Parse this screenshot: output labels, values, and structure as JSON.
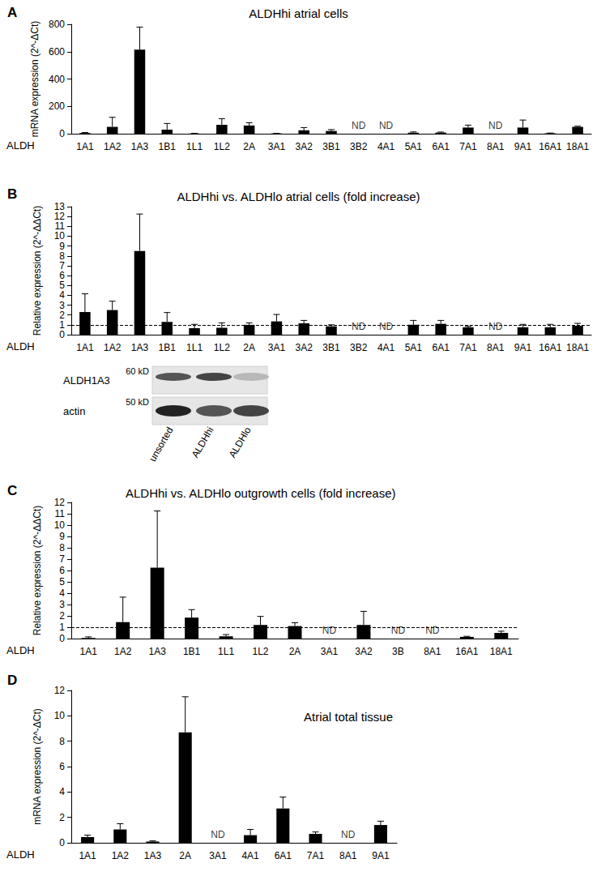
{
  "chart_data": [
    {
      "type": "bar",
      "panel": "A",
      "title": "ALDHhi atrial cells",
      "xlabel": "ALDH",
      "ylabel": "mRNA expression (2^-ΔCt)",
      "categories": [
        "1A1",
        "1A2",
        "1A3",
        "1B1",
        "1L1",
        "1L2",
        "2A",
        "3A1",
        "3A2",
        "3B1",
        "3B2",
        "4A1",
        "5A1",
        "6A1",
        "7A1",
        "8A1",
        "9A1",
        "16A1",
        "18A1"
      ],
      "values": [
        5,
        50,
        615,
        30,
        2,
        65,
        60,
        2,
        25,
        20,
        null,
        null,
        8,
        8,
        45,
        null,
        45,
        3,
        50
      ],
      "errors": [
        4,
        70,
        165,
        45,
        1,
        45,
        20,
        1,
        20,
        10,
        null,
        null,
        5,
        4,
        18,
        null,
        55,
        2,
        5
      ],
      "annotations": [
        {
          "category": "3B2",
          "text": "ND"
        },
        {
          "category": "4A1",
          "text": "ND"
        },
        {
          "category": "8A1",
          "text": "ND"
        }
      ],
      "color": "#000000",
      "ylim": [
        0,
        800
      ],
      "yticks": [
        0,
        200,
        400,
        600,
        800
      ],
      "grid": false
    },
    {
      "type": "bar",
      "panel": "B",
      "title": "ALDHhi vs. ALDHlo atrial cells (fold increase)",
      "xlabel": "ALDH",
      "ylabel": "Relative expression (2^-ΔΔCt)",
      "categories": [
        "1A1",
        "1A2",
        "1A3",
        "1B1",
        "1L1",
        "1L2",
        "2A",
        "3A1",
        "3A2",
        "3B1",
        "3B2",
        "4A1",
        "5A1",
        "6A1",
        "7A1",
        "8A1",
        "9A1",
        "16A1",
        "18A1"
      ],
      "values": [
        2.3,
        2.5,
        8.5,
        1.3,
        0.65,
        0.7,
        1.0,
        1.35,
        1.15,
        0.85,
        null,
        null,
        1.0,
        1.1,
        0.75,
        null,
        0.75,
        0.75,
        0.9
      ],
      "errors": [
        1.85,
        0.9,
        3.75,
        0.95,
        0.4,
        0.5,
        0.2,
        0.7,
        0.3,
        0.15,
        null,
        null,
        0.45,
        0.35,
        0.1,
        null,
        0.3,
        0.3,
        0.25
      ],
      "annotations": [
        {
          "category": "3B2",
          "text": "ND"
        },
        {
          "category": "4A1",
          "text": "ND"
        },
        {
          "category": "8A1",
          "text": "ND"
        }
      ],
      "hline": 1,
      "color": "#000000",
      "ylim": [
        0,
        13
      ],
      "yticks": [
        0,
        1,
        2,
        3,
        4,
        5,
        6,
        7,
        8,
        9,
        10,
        11,
        12,
        13
      ],
      "grid": false
    },
    {
      "type": "bar",
      "panel": "C",
      "title": "ALDHhi vs. ALDHlo outgrowth cells (fold increase)",
      "xlabel": "ALDH",
      "ylabel": "Relative expression (2^-ΔΔCt)",
      "categories": [
        "1A1",
        "1A2",
        "1A3",
        "1B1",
        "1L1",
        "1L2",
        "2A",
        "3A1",
        "3A2",
        "3B",
        "8A1",
        "16A1",
        "18A1"
      ],
      "values": [
        0.05,
        1.45,
        6.25,
        1.85,
        0.2,
        1.2,
        1.1,
        null,
        1.2,
        null,
        null,
        0.15,
        0.5
      ],
      "errors": [
        0.1,
        2.2,
        5.0,
        0.7,
        0.15,
        0.75,
        0.3,
        null,
        1.2,
        null,
        null,
        0.05,
        0.15
      ],
      "annotations": [
        {
          "category": "3A1",
          "text": "ND"
        },
        {
          "category": "3B",
          "text": "ND"
        },
        {
          "category": "8A1",
          "text": "ND"
        }
      ],
      "hline": 1,
      "color": "#000000",
      "ylim": [
        0,
        12
      ],
      "yticks": [
        0,
        1,
        2,
        3,
        4,
        5,
        6,
        7,
        8,
        9,
        10,
        11,
        12
      ],
      "grid": false
    },
    {
      "type": "bar",
      "panel": "D",
      "title": "Atrial total tissue",
      "xlabel": "ALDH",
      "ylabel": "mRNA expression (2^-ΔCt)",
      "categories": [
        "1A1",
        "1A2",
        "1A3",
        "2A",
        "3A1",
        "4A1",
        "6A1",
        "7A1",
        "8A1",
        "9A1"
      ],
      "values": [
        0.45,
        1.05,
        0.1,
        8.7,
        null,
        0.6,
        2.7,
        0.7,
        null,
        1.4
      ],
      "errors": [
        0.15,
        0.45,
        0.05,
        2.8,
        null,
        0.45,
        0.9,
        0.15,
        null,
        0.3
      ],
      "annotations": [
        {
          "category": "3A1",
          "text": "ND"
        },
        {
          "category": "8A1",
          "text": "ND"
        }
      ],
      "color": "#000000",
      "ylim": [
        0,
        12
      ],
      "yticks": [
        0,
        2,
        4,
        6,
        8,
        10,
        12
      ],
      "grid": false
    }
  ],
  "blot": {
    "rows": [
      {
        "label": "ALDH1A3",
        "size_label": "60 kD"
      },
      {
        "label": "actin",
        "size_label": "50 kD"
      }
    ],
    "lanes": [
      "unsorted",
      "ALDHhi",
      "ALDHlo"
    ]
  }
}
